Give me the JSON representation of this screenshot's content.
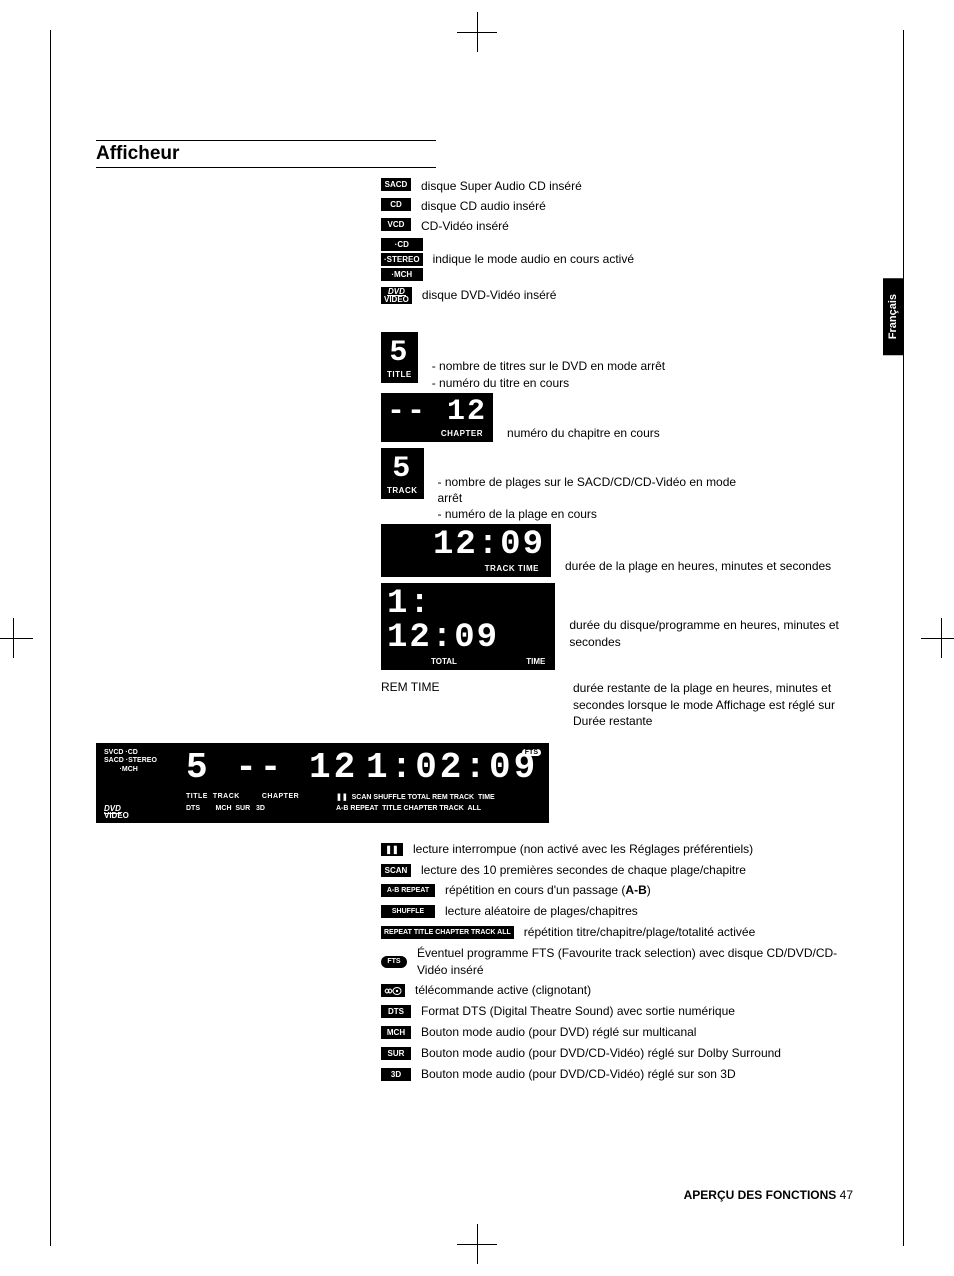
{
  "section_title": "Afficheur",
  "language_tab": "Français",
  "footer_label": "APERÇU DES FONCTIONS",
  "footer_page": "47",
  "top_indicators": [
    {
      "badge": "SACD",
      "text": "disque Super Audio CD inséré"
    },
    {
      "badge": "CD",
      "text": "disque CD audio inséré"
    },
    {
      "badge": "VCD",
      "text": "CD-Vidéo inséré"
    }
  ],
  "audio_mode": {
    "badges": [
      "·CD",
      "·STEREO",
      "·MCH"
    ],
    "text": "indique le mode audio en cours activé"
  },
  "dvd_video": {
    "badge_top": "DVD",
    "badge_bottom": "VIDEO",
    "text": "disque DVD-Vidéo inséré"
  },
  "title_block": {
    "digit": "5",
    "label": "TITLE",
    "line1": "- nombre de titres sur le DVD en mode arrêt",
    "line2": "- numéro du titre en cours"
  },
  "chapter_block": {
    "digits": "-- 12",
    "label": "CHAPTER",
    "text": "numéro du chapitre en cours"
  },
  "track_block": {
    "digit": "5",
    "label": "TRACK",
    "line1": "- nombre de plages sur le SACD/CD/CD-Vidéo en mode arrêt",
    "line2": "- numéro de la plage en cours"
  },
  "track_time": {
    "digits": "12:09",
    "label": "TRACK  TIME",
    "text": "durée de la plage en heures, minutes et secondes"
  },
  "total_time": {
    "digits": "1: 12:09",
    "label_l": "TOTAL",
    "label_r": "TIME",
    "text": "durée du disque/programme en heures, minutes et secondes"
  },
  "rem_time": {
    "label": "REM TIME",
    "text": "durée restante de la plage en heures, minutes et secondes lorsque le mode Affichage est réglé sur Durée restante"
  },
  "panel": {
    "left_lines": "SVCD ·CD\nSACD ·STEREO\n        ·MCH",
    "dvd_top": "DVD",
    "dvd_bottom": "VIDEO",
    "big_left": "5 -- 12",
    "big_right": "1:02:09",
    "row1_left": "TITLE  TRACK         CHAPTER",
    "row2_left": "DTS        MCH  SUR   3D",
    "row1_right": "❚❚  SCAN SHUFFLE TOTAL REM TRACK  TIME",
    "row2_right": "A-B REPEAT  TITLE CHAPTER TRACK  ALL",
    "fts": "FTS"
  },
  "lower": [
    {
      "badge": "❚❚",
      "badge_class": "pause-badge",
      "text": "lecture interrompue (non activé avec les Réglages préférentiels)"
    },
    {
      "badge": "SCAN",
      "text": "lecture des 10 premières secondes de chaque plage/chapitre"
    },
    {
      "badge": "A-B REPEAT",
      "badge_class": "wide",
      "html": "répétition en cours d'un passage (<b>A-B</b>)"
    },
    {
      "badge": "SHUFFLE",
      "badge_class": "wide",
      "text": "lecture aléatoire de plages/chapitres"
    },
    {
      "badge": "REPEAT TITLE CHAPTER TRACK ALL",
      "badge_class": "xwide",
      "text": "répétition titre/chapitre/plage/totalité activée"
    },
    {
      "pill": "FTS",
      "text": "Éventuel programme FTS (Favourite track selection) avec disque CD/DVD/CD-Vidéo inséré"
    },
    {
      "remote": true,
      "text": "télécommande active (clignotant)"
    },
    {
      "badge": "DTS",
      "text": "Format DTS (Digital Theatre Sound) avec sortie numérique"
    },
    {
      "badge": "MCH",
      "text": "Bouton mode audio (pour DVD) réglé sur multicanal"
    },
    {
      "badge": "SUR",
      "text": "Bouton mode audio (pour DVD/CD-Vidéo) réglé sur Dolby Surround"
    },
    {
      "badge": "3D",
      "text": "Bouton mode audio (pour DVD/CD-Vidéo) réglé sur son 3D"
    }
  ]
}
